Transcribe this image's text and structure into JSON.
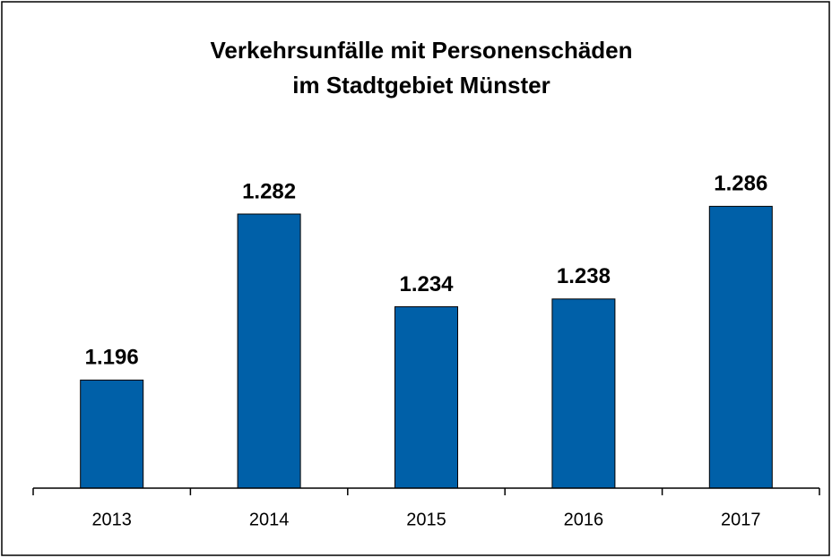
{
  "chart_data": {
    "type": "bar",
    "title": [
      "Verkehrsunfälle mit Personenschäden",
      "im Stadtgebiet Münster"
    ],
    "categories": [
      "2013",
      "2014",
      "2015",
      "2016",
      "2017"
    ],
    "values": [
      1196,
      1282,
      1234,
      1238,
      1286
    ],
    "value_labels": [
      "1.196",
      "1.282",
      "1.234",
      "1.238",
      "1.286"
    ],
    "color": "#0060a8",
    "ylim": [
      1140,
      1340
    ]
  }
}
